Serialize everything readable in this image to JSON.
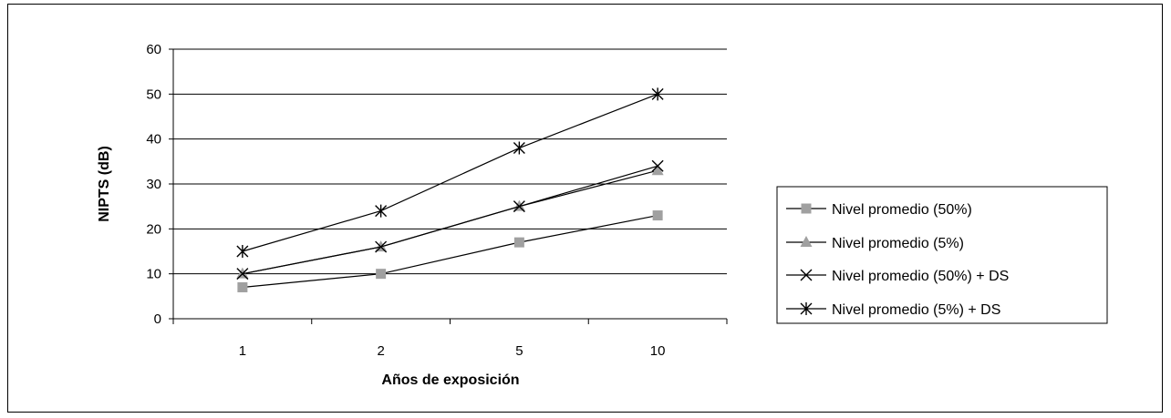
{
  "chart_data": {
    "type": "line",
    "categories": [
      "1",
      "2",
      "5",
      "10"
    ],
    "xlabel": "Años de exposición",
    "ylabel": "NIPTS (dB)",
    "ylim": [
      0,
      60
    ],
    "yticks": [
      0,
      10,
      20,
      30,
      40,
      50,
      60
    ],
    "grid": true,
    "legend_position": "right",
    "series": [
      {
        "name": "Nivel promedio (50%)",
        "marker": "square",
        "values": [
          7,
          10,
          17,
          23
        ]
      },
      {
        "name": "Nivel promedio (5%)",
        "marker": "triangle",
        "values": [
          10,
          16,
          25,
          33
        ]
      },
      {
        "name": "Nivel promedio (50%) + DS",
        "marker": "x",
        "values": [
          10,
          16,
          25,
          34
        ]
      },
      {
        "name": "Nivel promedio (5%) + DS",
        "marker": "star",
        "values": [
          15,
          24,
          38,
          50
        ]
      }
    ]
  }
}
